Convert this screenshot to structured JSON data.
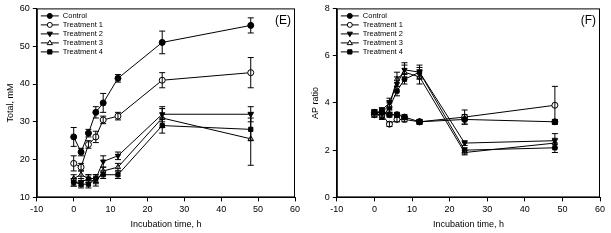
{
  "chart_data": [
    {
      "type": "line",
      "annotation": "(E)",
      "x_label": "Incubation time, h",
      "y_label": "Total, mM",
      "xlim": [
        -10,
        60
      ],
      "xticks": [
        -10,
        0,
        10,
        20,
        30,
        40,
        50,
        60
      ],
      "ylim": [
        10,
        60
      ],
      "yticks": [
        10,
        20,
        30,
        40,
        50,
        60
      ],
      "grid": false,
      "legend": "upper left",
      "x": [
        0,
        2,
        4,
        6,
        8,
        12,
        24,
        48
      ],
      "series": [
        {
          "name": "Control",
          "color": "#000000",
          "marker": "circle",
          "line_style": "solid",
          "values": [
            26,
            22,
            27,
            32.5,
            35,
            41.5,
            51,
            55.5
          ],
          "errors": [
            2.5,
            1,
            1,
            1.5,
            2.5,
            1,
            3,
            2
          ]
        },
        {
          "name": "Treatment 1",
          "color": "#000000",
          "marker": "circle-open",
          "line_style": "solid",
          "values": [
            19,
            18,
            24,
            26,
            30.5,
            31.5,
            41,
            43
          ],
          "errors": [
            2,
            1,
            1,
            1.5,
            1,
            1,
            2,
            4
          ]
        },
        {
          "name": "Treatment 2",
          "color": "#000000",
          "marker": "triangle-down",
          "line_style": "solid",
          "values": [
            14,
            14,
            15,
            15,
            19.5,
            21,
            32,
            32
          ],
          "errors": [
            1,
            1,
            1,
            1,
            1.5,
            1,
            2,
            2
          ]
        },
        {
          "name": "Treatment 3",
          "color": "#000000",
          "marker": "triangle-open",
          "line_style": "solid",
          "values": [
            15,
            16,
            15,
            14,
            17,
            18,
            31,
            25.5
          ],
          "errors": [
            1,
            1,
            1,
            1,
            1,
            1,
            2.5,
            7
          ]
        },
        {
          "name": "Treatment 4",
          "color": "#000000",
          "marker": "square",
          "line_style": "solid",
          "values": [
            14,
            13.5,
            13.5,
            15,
            16,
            16,
            29,
            28
          ],
          "errors": [
            1,
            1,
            1,
            1,
            1,
            1,
            2,
            3
          ]
        }
      ]
    },
    {
      "type": "line",
      "annotation": "(F)",
      "x_label": "Incubation time, h",
      "y_label": "AP ratio",
      "xlim": [
        -10,
        60
      ],
      "xticks": [
        -10,
        0,
        10,
        20,
        30,
        40,
        50,
        60
      ],
      "ylim": [
        0,
        8
      ],
      "yticks": [
        0,
        2,
        4,
        6,
        8
      ],
      "grid": false,
      "legend": "upper left",
      "x": [
        0,
        2,
        4,
        6,
        8,
        12,
        24,
        48
      ],
      "series": [
        {
          "name": "Control",
          "color": "#000000",
          "marker": "circle",
          "line_style": "solid",
          "values": [
            3.6,
            3.6,
            3.5,
            3.5,
            3.4,
            3.2,
            3.3,
            3.2
          ],
          "errors": [
            0.1,
            0.1,
            0.1,
            0.1,
            0.1,
            0.1,
            0.2,
            0.1
          ]
        },
        {
          "name": "Treatment 1",
          "color": "#000000",
          "marker": "circle-open",
          "line_style": "solid",
          "values": [
            3.5,
            3.5,
            3.1,
            3.3,
            3.3,
            3.2,
            3.4,
            3.9
          ],
          "errors": [
            0.1,
            0.1,
            0.1,
            0.1,
            0.1,
            0.1,
            0.3,
            0.8
          ]
        },
        {
          "name": "Treatment 2",
          "color": "#000000",
          "marker": "triangle-down",
          "line_style": "solid",
          "values": [
            3.5,
            3.7,
            4.0,
            4.8,
            5.4,
            5.3,
            2.3,
            2.4
          ],
          "errors": [
            0.1,
            0.1,
            0.2,
            0.3,
            0.3,
            0.3,
            0.1,
            0.3
          ]
        },
        {
          "name": "Treatment 3",
          "color": "#000000",
          "marker": "triangle-open",
          "line_style": "solid",
          "values": [
            3.6,
            3.6,
            3.9,
            5.0,
            5.3,
            5.1,
            1.9,
            2.3
          ],
          "errors": [
            0.1,
            0.1,
            0.2,
            0.3,
            0.3,
            0.3,
            0.1,
            0.2
          ]
        },
        {
          "name": "Treatment 4",
          "color": "#000000",
          "marker": "square",
          "line_style": "solid",
          "values": [
            3.6,
            3.4,
            3.8,
            4.5,
            5.0,
            5.3,
            2.0,
            2.1
          ],
          "errors": [
            0.1,
            0.1,
            0.2,
            0.2,
            0.2,
            0.2,
            0.1,
            0.2
          ]
        }
      ]
    }
  ]
}
